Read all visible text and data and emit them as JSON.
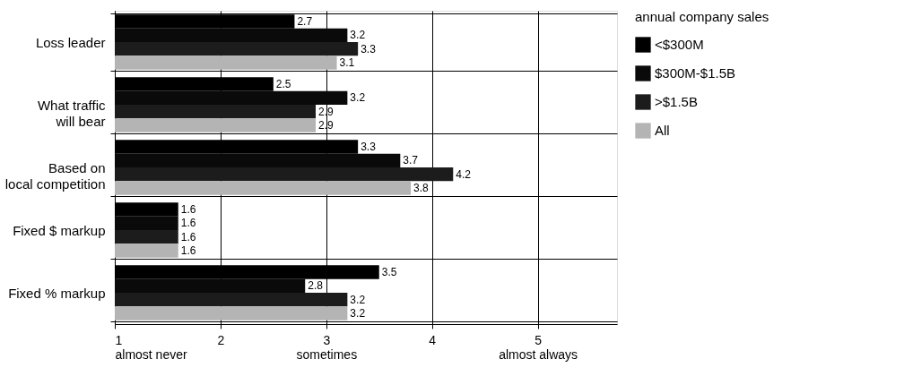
{
  "chart_data": {
    "type": "bar",
    "orientation": "horizontal",
    "legend_title": "annual company sales",
    "legend": "right",
    "grid": true,
    "data_labels": true,
    "categories": [
      "Loss leader",
      "What traffic\nwill bear",
      "Based on\nlocal competition",
      "Fixed $ markup",
      "Fixed % markup"
    ],
    "series": [
      {
        "name": "<$300M",
        "color": "#000000",
        "values": [
          2.7,
          2.5,
          3.3,
          1.6,
          3.5
        ]
      },
      {
        "name": "$300M-$1.5B",
        "color": "#0a0a0a",
        "values": [
          3.2,
          3.2,
          3.7,
          1.6,
          2.8
        ]
      },
      {
        "name": ">$1.5B",
        "color": "#1c1c1c",
        "values": [
          3.3,
          2.9,
          4.2,
          1.6,
          3.2
        ]
      },
      {
        "name": "All",
        "color": "#b4b4b4",
        "values": [
          3.1,
          2.9,
          3.8,
          1.6,
          3.2
        ]
      }
    ],
    "xlim": [
      1,
      5.75
    ],
    "xticks": [
      {
        "value": 1,
        "label": "1\nalmost never"
      },
      2,
      {
        "value": 3,
        "label": "3\nsometimes"
      },
      4,
      {
        "value": 5,
        "label": "5\nalmost always"
      }
    ]
  }
}
